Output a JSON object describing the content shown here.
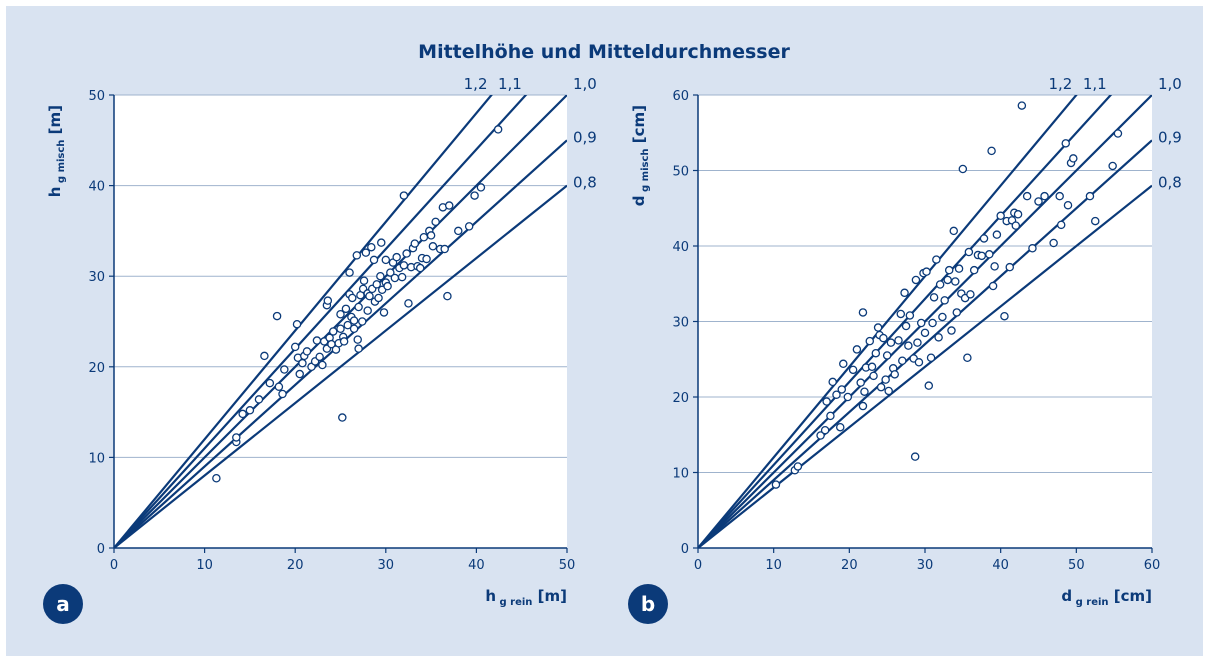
{
  "title": "Mittelhöhe und Mitteldurchmesser",
  "colors": {
    "background": "#d9e3f1",
    "ink": "#0b3a79",
    "plot_bg": "#ffffff",
    "grid": "#9fb3cd"
  },
  "chart_data": [
    {
      "type": "scatter",
      "panel_label": "a",
      "xlabel": {
        "main": "h",
        "sub": "g rein",
        "unit": "[m]"
      },
      "ylabel": {
        "main": "h",
        "sub": "g misch",
        "unit": "[m]"
      },
      "xlim": [
        0,
        50
      ],
      "ylim": [
        0,
        50
      ],
      "xticks": [
        0,
        10,
        20,
        30,
        40,
        50
      ],
      "yticks": [
        0,
        10,
        20,
        30,
        40,
        50
      ],
      "grid": "horizontal",
      "reference_lines": [
        {
          "label": "1,2",
          "slope": 1.2
        },
        {
          "label": "1,1",
          "slope": 1.1
        },
        {
          "label": "1,0",
          "slope": 1.0
        },
        {
          "label": "0,9",
          "slope": 0.9
        },
        {
          "label": "0,8",
          "slope": 0.8
        }
      ],
      "points": [
        [
          11.3,
          7.7
        ],
        [
          13.5,
          11.7
        ],
        [
          13.5,
          12.2
        ],
        [
          14.2,
          14.8
        ],
        [
          15.0,
          15.2
        ],
        [
          16.0,
          16.4
        ],
        [
          16.6,
          21.2
        ],
        [
          17.2,
          18.2
        ],
        [
          18.0,
          25.6
        ],
        [
          18.2,
          17.8
        ],
        [
          18.6,
          17.0
        ],
        [
          18.8,
          19.7
        ],
        [
          20.0,
          22.2
        ],
        [
          20.2,
          24.7
        ],
        [
          20.3,
          21.0
        ],
        [
          20.5,
          19.2
        ],
        [
          20.8,
          20.4
        ],
        [
          21.0,
          21.2
        ],
        [
          21.3,
          21.7
        ],
        [
          21.8,
          20.0
        ],
        [
          22.2,
          20.6
        ],
        [
          22.4,
          22.9
        ],
        [
          22.7,
          21.1
        ],
        [
          23.0,
          20.2
        ],
        [
          23.2,
          22.8
        ],
        [
          23.5,
          22.0
        ],
        [
          23.5,
          26.8
        ],
        [
          23.6,
          27.3
        ],
        [
          23.8,
          23.2
        ],
        [
          24.0,
          22.5
        ],
        [
          24.2,
          23.9
        ],
        [
          24.5,
          21.9
        ],
        [
          24.8,
          22.6
        ],
        [
          25.0,
          25.8
        ],
        [
          25.0,
          24.2
        ],
        [
          25.2,
          14.4
        ],
        [
          25.3,
          23.3
        ],
        [
          25.4,
          22.8
        ],
        [
          25.6,
          26.4
        ],
        [
          25.8,
          24.6
        ],
        [
          26.0,
          30.4
        ],
        [
          26.0,
          28.0
        ],
        [
          26.2,
          25.5
        ],
        [
          26.3,
          27.6
        ],
        [
          26.5,
          24.2
        ],
        [
          26.5,
          25.1
        ],
        [
          26.8,
          32.3
        ],
        [
          26.9,
          23.0
        ],
        [
          27.0,
          22.0
        ],
        [
          27.0,
          26.6
        ],
        [
          27.2,
          27.9
        ],
        [
          27.4,
          25.0
        ],
        [
          27.5,
          28.6
        ],
        [
          27.6,
          29.5
        ],
        [
          27.8,
          32.6
        ],
        [
          28.0,
          28.1
        ],
        [
          28.0,
          26.2
        ],
        [
          28.2,
          27.8
        ],
        [
          28.4,
          33.2
        ],
        [
          28.5,
          28.6
        ],
        [
          28.7,
          31.8
        ],
        [
          28.8,
          27.2
        ],
        [
          29.0,
          29.1
        ],
        [
          29.2,
          27.6
        ],
        [
          29.4,
          30.0
        ],
        [
          29.5,
          33.7
        ],
        [
          29.6,
          28.5
        ],
        [
          29.8,
          26.0
        ],
        [
          30.0,
          29.3
        ],
        [
          30.0,
          31.8
        ],
        [
          30.2,
          28.9
        ],
        [
          30.5,
          30.4
        ],
        [
          30.8,
          31.5
        ],
        [
          31.0,
          29.8
        ],
        [
          31.2,
          32.1
        ],
        [
          31.5,
          30.9
        ],
        [
          31.8,
          29.9
        ],
        [
          32.0,
          38.9
        ],
        [
          32.0,
          31.2
        ],
        [
          32.3,
          32.5
        ],
        [
          32.5,
          27.0
        ],
        [
          32.8,
          31.0
        ],
        [
          33.0,
          33.1
        ],
        [
          33.2,
          33.6
        ],
        [
          33.5,
          31.1
        ],
        [
          33.8,
          30.9
        ],
        [
          34.0,
          32.0
        ],
        [
          34.2,
          34.3
        ],
        [
          34.5,
          31.9
        ],
        [
          34.8,
          35.0
        ],
        [
          35.0,
          34.5
        ],
        [
          35.2,
          33.3
        ],
        [
          35.5,
          36.0
        ],
        [
          36.0,
          33.0
        ],
        [
          36.3,
          37.6
        ],
        [
          36.5,
          33.0
        ],
        [
          36.8,
          27.8
        ],
        [
          37.0,
          37.8
        ],
        [
          38.0,
          35.0
        ],
        [
          39.2,
          35.5
        ],
        [
          39.8,
          38.9
        ],
        [
          40.5,
          39.8
        ],
        [
          42.4,
          46.2
        ]
      ]
    },
    {
      "type": "scatter",
      "panel_label": "b",
      "xlabel": {
        "main": "d",
        "sub": "g rein",
        "unit": "[cm]"
      },
      "ylabel": {
        "main": "d",
        "sub": "g misch",
        "unit": "[cm]"
      },
      "xlim": [
        0,
        60
      ],
      "ylim": [
        0,
        60
      ],
      "xticks": [
        0,
        10,
        20,
        30,
        40,
        50,
        60
      ],
      "yticks": [
        0,
        10,
        20,
        30,
        40,
        50,
        60
      ],
      "grid": "horizontal",
      "reference_lines": [
        {
          "label": "1,2",
          "slope": 1.2
        },
        {
          "label": "1,1",
          "slope": 1.1
        },
        {
          "label": "1,0",
          "slope": 1.0
        },
        {
          "label": "0,9",
          "slope": 0.9
        },
        {
          "label": "0,8",
          "slope": 0.8
        }
      ],
      "points": [
        [
          10.3,
          8.4
        ],
        [
          12.8,
          10.3
        ],
        [
          13.2,
          10.8
        ],
        [
          16.2,
          14.9
        ],
        [
          16.8,
          15.6
        ],
        [
          17.0,
          19.4
        ],
        [
          17.5,
          17.5
        ],
        [
          17.8,
          22.0
        ],
        [
          18.3,
          20.3
        ],
        [
          18.8,
          16.0
        ],
        [
          19.0,
          21.0
        ],
        [
          19.2,
          24.4
        ],
        [
          19.8,
          20.0
        ],
        [
          20.5,
          23.6
        ],
        [
          21.0,
          26.3
        ],
        [
          21.5,
          21.9
        ],
        [
          21.8,
          31.2
        ],
        [
          21.8,
          18.8
        ],
        [
          22.0,
          20.7
        ],
        [
          22.2,
          23.9
        ],
        [
          22.7,
          27.4
        ],
        [
          23.0,
          24.0
        ],
        [
          23.2,
          22.8
        ],
        [
          23.5,
          25.8
        ],
        [
          23.8,
          29.2
        ],
        [
          24.0,
          28.2
        ],
        [
          24.2,
          21.3
        ],
        [
          24.5,
          27.8
        ],
        [
          24.8,
          22.3
        ],
        [
          25.0,
          25.5
        ],
        [
          25.2,
          20.8
        ],
        [
          25.5,
          27.2
        ],
        [
          25.8,
          23.8
        ],
        [
          26.0,
          23.0
        ],
        [
          26.5,
          27.5
        ],
        [
          26.8,
          31.0
        ],
        [
          27.0,
          24.8
        ],
        [
          27.3,
          33.8
        ],
        [
          27.5,
          29.4
        ],
        [
          27.8,
          26.8
        ],
        [
          28.0,
          30.8
        ],
        [
          28.5,
          25.1
        ],
        [
          28.7,
          12.1
        ],
        [
          28.8,
          35.5
        ],
        [
          29.0,
          27.2
        ],
        [
          29.2,
          24.6
        ],
        [
          29.5,
          29.8
        ],
        [
          29.8,
          36.4
        ],
        [
          30.0,
          28.5
        ],
        [
          30.2,
          36.6
        ],
        [
          30.5,
          21.5
        ],
        [
          30.8,
          25.2
        ],
        [
          31.0,
          29.8
        ],
        [
          31.2,
          33.2
        ],
        [
          31.5,
          38.2
        ],
        [
          31.8,
          27.9
        ],
        [
          32.0,
          34.9
        ],
        [
          32.3,
          30.6
        ],
        [
          32.6,
          32.8
        ],
        [
          33.0,
          35.5
        ],
        [
          33.2,
          36.8
        ],
        [
          33.5,
          28.8
        ],
        [
          33.8,
          42.0
        ],
        [
          34.0,
          35.3
        ],
        [
          34.2,
          31.2
        ],
        [
          34.5,
          37.0
        ],
        [
          34.8,
          33.7
        ],
        [
          35.0,
          50.2
        ],
        [
          35.3,
          33.1
        ],
        [
          35.6,
          25.2
        ],
        [
          35.8,
          39.2
        ],
        [
          36.0,
          33.6
        ],
        [
          36.5,
          36.8
        ],
        [
          37.0,
          38.8
        ],
        [
          37.5,
          38.7
        ],
        [
          37.8,
          41.0
        ],
        [
          38.5,
          38.9
        ],
        [
          38.8,
          52.6
        ],
        [
          39.0,
          34.7
        ],
        [
          39.2,
          37.3
        ],
        [
          39.5,
          41.5
        ],
        [
          40.0,
          44.0
        ],
        [
          40.5,
          30.7
        ],
        [
          40.8,
          43.3
        ],
        [
          41.2,
          37.2
        ],
        [
          41.5,
          43.4
        ],
        [
          41.8,
          44.4
        ],
        [
          42.0,
          42.7
        ],
        [
          42.3,
          44.2
        ],
        [
          42.8,
          58.6
        ],
        [
          43.5,
          46.6
        ],
        [
          44.2,
          39.7
        ],
        [
          45.0,
          45.9
        ],
        [
          45.8,
          46.6
        ],
        [
          47.0,
          40.4
        ],
        [
          47.8,
          46.6
        ],
        [
          48.0,
          42.8
        ],
        [
          48.6,
          53.6
        ],
        [
          48.9,
          45.4
        ],
        [
          49.3,
          51.0
        ],
        [
          49.6,
          51.6
        ],
        [
          51.8,
          46.6
        ],
        [
          52.5,
          43.3
        ],
        [
          54.8,
          50.6
        ],
        [
          55.5,
          54.9
        ]
      ]
    }
  ]
}
